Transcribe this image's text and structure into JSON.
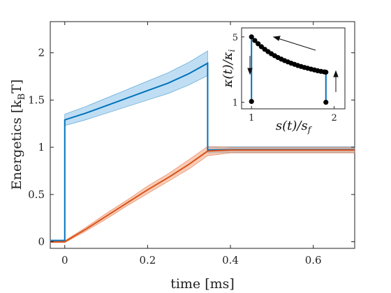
{
  "chart_data": {
    "type": "line",
    "title": "",
    "xlabel": "time [ms]",
    "ylabel": "Energetics [k",
    "ylabel_sub": "B",
    "ylabel_end": "T]",
    "xlim": [
      -0.035,
      0.7
    ],
    "ylim": [
      -0.07,
      2.33
    ],
    "xticks": [
      0,
      0.2,
      0.4,
      0.6
    ],
    "xtick_labels": [
      "0",
      "0.2",
      "0.4",
      "0.6"
    ],
    "yticks": [
      0,
      0.5,
      1,
      1.5,
      2
    ],
    "ytick_labels": [
      "0",
      "0.5",
      "1",
      "1.5",
      "2"
    ],
    "grid": false,
    "series": [
      {
        "color": "#0072bd",
        "band_color": "#8dc3ea",
        "x": [
          -0.035,
          0.0,
          0.0,
          0.05,
          0.1,
          0.15,
          0.2,
          0.25,
          0.3,
          0.345,
          0.345,
          0.4,
          0.5,
          0.6,
          0.7
        ],
        "y": [
          0.01,
          0.01,
          1.29,
          1.36,
          1.44,
          1.52,
          1.6,
          1.68,
          1.78,
          1.89,
          0.97,
          0.975,
          0.975,
          0.975,
          0.975
        ],
        "band_halfwidth": [
          0.01,
          0.01,
          0.06,
          0.07,
          0.08,
          0.09,
          0.1,
          0.11,
          0.12,
          0.13,
          0.03,
          0.03,
          0.03,
          0.03,
          0.03
        ]
      },
      {
        "color": "#d95319",
        "band_color": "#f4a37a",
        "x": [
          -0.035,
          0.0,
          0.05,
          0.1,
          0.15,
          0.2,
          0.25,
          0.3,
          0.345,
          0.4,
          0.5,
          0.6,
          0.7
        ],
        "y": [
          0.0,
          0.0,
          0.13,
          0.27,
          0.41,
          0.55,
          0.68,
          0.82,
          0.96,
          0.97,
          0.97,
          0.97,
          0.97
        ],
        "band_halfwidth": [
          0.01,
          0.01,
          0.02,
          0.03,
          0.03,
          0.04,
          0.04,
          0.05,
          0.05,
          0.03,
          0.03,
          0.03,
          0.03
        ]
      }
    ],
    "inset": {
      "xlabel": "s(t)/s",
      "xlabel_sub": "f",
      "ylabel": "κ(t)/κ",
      "ylabel_sub": "i",
      "xlim": [
        0.88,
        2.13
      ],
      "ylim": [
        0.6,
        5.55
      ],
      "xticks": [
        1,
        2
      ],
      "xtick_labels": [
        "1",
        "2"
      ],
      "yticks": [
        1,
        5
      ],
      "ytick_labels": [
        "1",
        "5"
      ],
      "line_color": "#0072bd",
      "point_color": "#000000",
      "points": {
        "x": [
          1.0,
          1.04,
          1.08,
          1.12,
          1.16,
          1.2,
          1.24,
          1.28,
          1.32,
          1.36,
          1.4,
          1.44,
          1.48,
          1.52,
          1.56,
          1.6,
          1.64,
          1.68,
          1.72,
          1.76,
          1.8,
          1.84,
          1.88,
          1.9
        ],
        "y": [
          5.0,
          4.78,
          4.58,
          4.4,
          4.24,
          4.1,
          3.97,
          3.85,
          3.74,
          3.64,
          3.55,
          3.47,
          3.39,
          3.32,
          3.25,
          3.19,
          3.13,
          3.08,
          3.03,
          2.98,
          2.93,
          2.89,
          2.86,
          2.84
        ]
      },
      "low_points": {
        "x": [
          1.0,
          1.9
        ],
        "y": [
          1.05,
          1.0
        ]
      }
    }
  }
}
